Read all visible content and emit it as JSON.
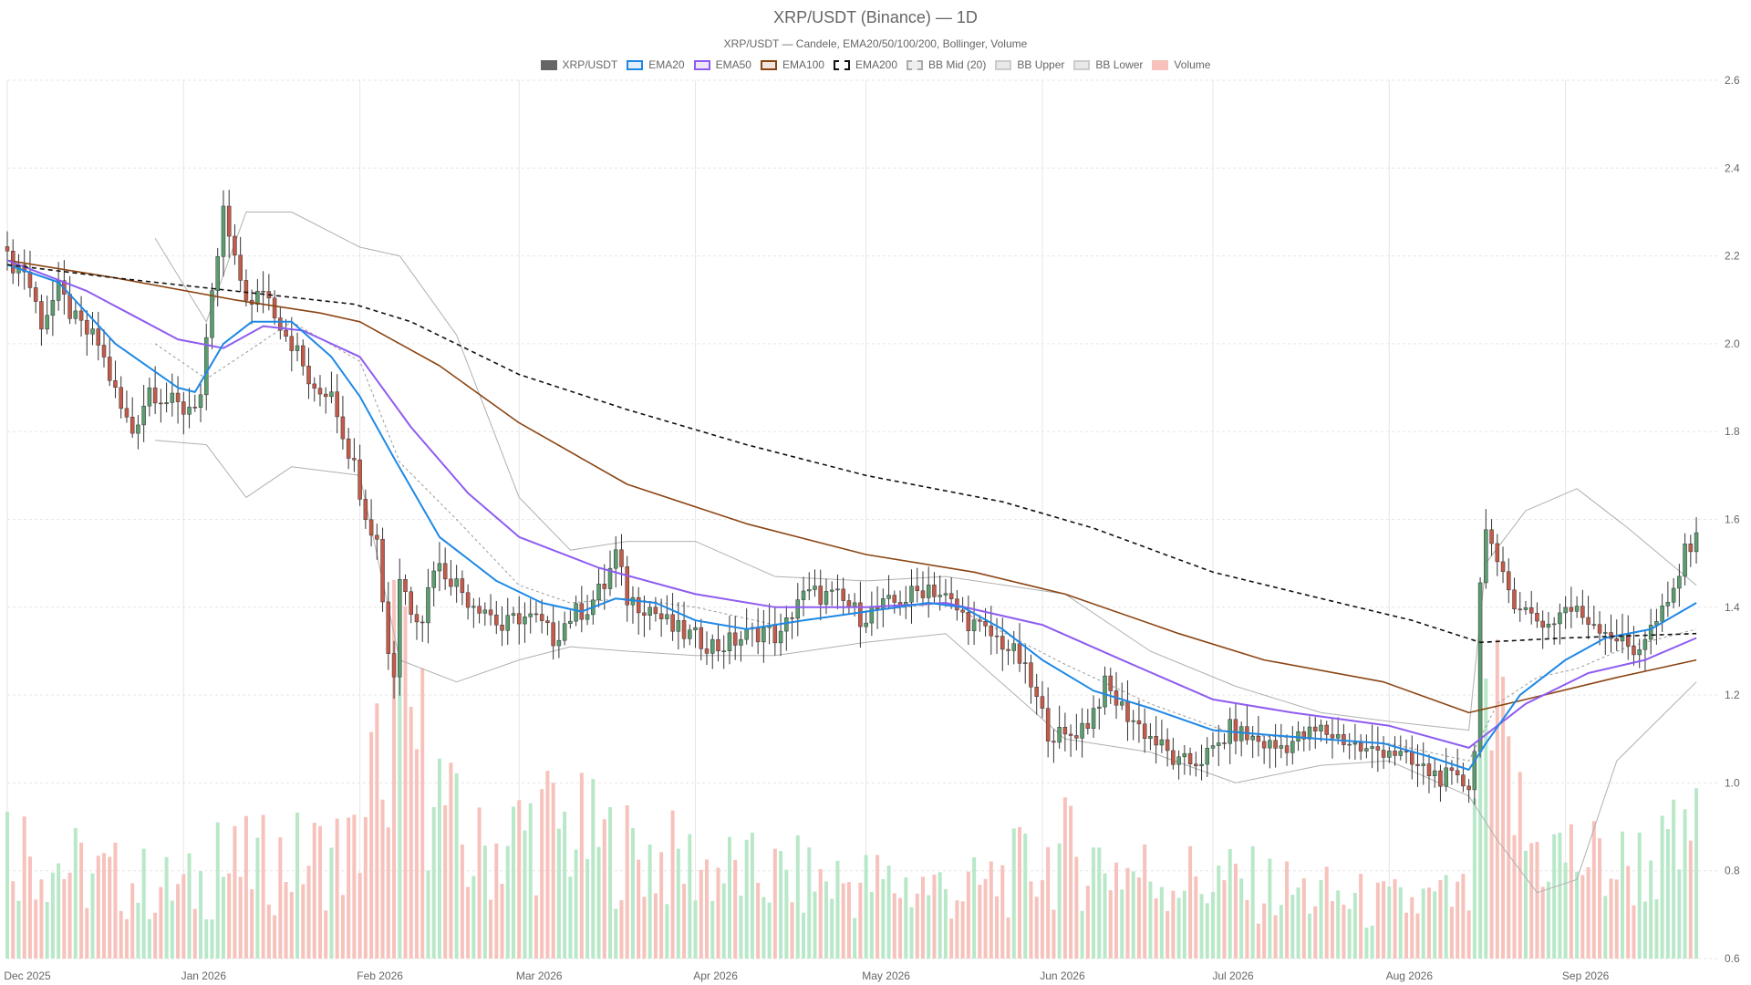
{
  "chart_data": {
    "type": "candlestick",
    "title": "XRP/USDT (Binance) — 1D",
    "subtitle": "XRP/USDT — Candele, EMA20/50/100/200, Bollinger, Volume",
    "legend_position": "top",
    "grid": true,
    "ylim": [
      0.6,
      2.6
    ],
    "y_ticks": [
      "0.6",
      "0.8",
      "1.0",
      "1.2",
      "1.4",
      "1.6",
      "1.8",
      "2.0",
      "2.2",
      "2.4",
      "2.6"
    ],
    "x_ticks": [
      {
        "date": "2025-12-01",
        "label": "Dec 2025"
      },
      {
        "date": "2026-01-01",
        "label": "Jan 2026"
      },
      {
        "date": "2026-02-01",
        "label": "Feb 2026"
      },
      {
        "date": "2026-03-01",
        "label": "Mar 2026"
      },
      {
        "date": "2026-04-01",
        "label": "Apr 2026"
      },
      {
        "date": "2026-05-01",
        "label": "May 2026"
      },
      {
        "date": "2026-06-01",
        "label": "Jun 2026"
      },
      {
        "date": "2026-07-01",
        "label": "Jul 2026"
      },
      {
        "date": "2026-08-01",
        "label": "Aug 2026"
      },
      {
        "date": "2026-09-01",
        "label": "Sep 2026"
      }
    ],
    "x_range": [
      "2025-12-01",
      "2026-09-28"
    ],
    "colors": {
      "up": "#5a9e6f",
      "down": "#c45b4a",
      "volume_up": "#b9e8c9",
      "volume_down": "#f6c2bb",
      "ema20": "#1e88e5",
      "ema50": "#8e5cf0",
      "ema100": "#8b4513",
      "ema200": "#111111",
      "bb": "#b0b0b0",
      "bb_mid": "#9a9a9a"
    },
    "legend": [
      {
        "label": "XRP/USDT",
        "fill": "#666666",
        "border": "#666666",
        "dash": false
      },
      {
        "label": "EMA20",
        "fill": "#e3eef8",
        "border": "#1e88e5",
        "dash": false
      },
      {
        "label": "EMA50",
        "fill": "#eee6fb",
        "border": "#8e5cf0",
        "dash": false
      },
      {
        "label": "EMA100",
        "fill": "#f0e6df",
        "border": "#8b4513",
        "dash": false
      },
      {
        "label": "EMA200",
        "fill": "#ffffff",
        "border": "#111111",
        "dash": true
      },
      {
        "label": "BB Mid (20)",
        "fill": "#eeeeee",
        "border": "#aaaaaa",
        "dash": true
      },
      {
        "label": "BB Upper",
        "fill": "#e8e8e8",
        "border": "#cccccc",
        "dash": false
      },
      {
        "label": "BB Lower",
        "fill": "#e8e8e8",
        "border": "#cccccc",
        "dash": false
      },
      {
        "label": "Volume",
        "fill": "#f6c2bb",
        "border": "#f6c2bb",
        "dash": false
      }
    ],
    "close_path": [
      [
        "2025-12-01",
        2.19
      ],
      [
        "2025-12-04",
        2.17
      ],
      [
        "2025-12-07",
        2.05
      ],
      [
        "2025-12-10",
        2.12
      ],
      [
        "2025-12-13",
        2.05
      ],
      [
        "2025-12-17",
        2.0
      ],
      [
        "2025-12-21",
        1.85
      ],
      [
        "2025-12-23",
        1.8
      ],
      [
        "2025-12-26",
        1.9
      ],
      [
        "2025-12-29",
        1.87
      ],
      [
        "2026-01-01",
        1.85
      ],
      [
        "2026-01-04",
        1.88
      ],
      [
        "2026-01-06",
        2.1
      ],
      [
        "2026-01-08",
        2.3
      ],
      [
        "2026-01-10",
        2.18
      ],
      [
        "2026-01-13",
        2.08
      ],
      [
        "2026-01-15",
        2.13
      ],
      [
        "2026-01-18",
        2.05
      ],
      [
        "2026-01-21",
        1.98
      ],
      [
        "2026-01-24",
        1.88
      ],
      [
        "2026-01-27",
        1.9
      ],
      [
        "2026-01-29",
        1.8
      ],
      [
        "2026-01-31",
        1.72
      ],
      [
        "2026-02-02",
        1.62
      ],
      [
        "2026-02-04",
        1.55
      ],
      [
        "2026-02-06",
        1.3
      ],
      [
        "2026-02-07",
        1.25
      ],
      [
        "2026-02-08",
        1.47
      ],
      [
        "2026-02-10",
        1.4
      ],
      [
        "2026-02-12",
        1.38
      ],
      [
        "2026-02-14",
        1.5
      ],
      [
        "2026-02-17",
        1.47
      ],
      [
        "2026-02-20",
        1.42
      ],
      [
        "2026-02-23",
        1.4
      ],
      [
        "2026-02-26",
        1.35
      ],
      [
        "2026-03-01",
        1.38
      ],
      [
        "2026-03-04",
        1.37
      ],
      [
        "2026-03-07",
        1.33
      ],
      [
        "2026-03-10",
        1.38
      ],
      [
        "2026-03-13",
        1.4
      ],
      [
        "2026-03-16",
        1.45
      ],
      [
        "2026-03-18",
        1.52
      ],
      [
        "2026-03-20",
        1.42
      ],
      [
        "2026-03-24",
        1.4
      ],
      [
        "2026-03-28",
        1.35
      ],
      [
        "2026-04-01",
        1.33
      ],
      [
        "2026-04-05",
        1.31
      ],
      [
        "2026-04-09",
        1.33
      ],
      [
        "2026-04-13",
        1.35
      ],
      [
        "2026-04-16",
        1.33
      ],
      [
        "2026-04-19",
        1.42
      ],
      [
        "2026-04-22",
        1.43
      ],
      [
        "2026-04-26",
        1.42
      ],
      [
        "2026-04-30",
        1.38
      ],
      [
        "2026-05-04",
        1.4
      ],
      [
        "2026-05-08",
        1.42
      ],
      [
        "2026-05-12",
        1.45
      ],
      [
        "2026-05-15",
        1.42
      ],
      [
        "2026-05-18",
        1.38
      ],
      [
        "2026-05-21",
        1.35
      ],
      [
        "2026-05-25",
        1.32
      ],
      [
        "2026-05-28",
        1.28
      ],
      [
        "2026-05-30",
        1.22
      ],
      [
        "2026-06-02",
        1.12
      ],
      [
        "2026-06-05",
        1.1
      ],
      [
        "2026-06-09",
        1.14
      ],
      [
        "2026-06-12",
        1.22
      ],
      [
        "2026-06-15",
        1.17
      ],
      [
        "2026-06-18",
        1.13
      ],
      [
        "2026-06-22",
        1.08
      ],
      [
        "2026-06-25",
        1.04
      ],
      [
        "2026-06-28",
        1.05
      ],
      [
        "2026-07-01",
        1.07
      ],
      [
        "2026-07-04",
        1.12
      ],
      [
        "2026-07-08",
        1.1
      ],
      [
        "2026-07-12",
        1.08
      ],
      [
        "2026-07-16",
        1.1
      ],
      [
        "2026-07-20",
        1.12
      ],
      [
        "2026-07-24",
        1.1
      ],
      [
        "2026-07-28",
        1.07
      ],
      [
        "2026-08-01",
        1.08
      ],
      [
        "2026-08-05",
        1.04
      ],
      [
        "2026-08-09",
        1.02
      ],
      [
        "2026-08-13",
        1.0
      ],
      [
        "2026-08-15",
        1.0
      ],
      [
        "2026-08-16",
        1.08
      ],
      [
        "2026-08-17",
        1.45
      ],
      [
        "2026-08-18",
        1.6
      ],
      [
        "2026-08-20",
        1.48
      ],
      [
        "2026-08-23",
        1.42
      ],
      [
        "2026-08-26",
        1.38
      ],
      [
        "2026-08-29",
        1.36
      ],
      [
        "2026-09-01",
        1.4
      ],
      [
        "2026-09-04",
        1.38
      ],
      [
        "2026-09-07",
        1.36
      ],
      [
        "2026-09-10",
        1.33
      ],
      [
        "2026-09-13",
        1.3
      ],
      [
        "2026-09-16",
        1.35
      ],
      [
        "2026-09-19",
        1.4
      ],
      [
        "2026-09-22",
        1.52
      ],
      [
        "2026-09-24",
        1.58
      ]
    ],
    "ema20": [
      [
        "2025-12-01",
        2.18
      ],
      [
        "2025-12-10",
        2.14
      ],
      [
        "2025-12-20",
        2.0
      ],
      [
        "2025-12-31",
        1.9
      ],
      [
        "2026-01-03",
        1.89
      ],
      [
        "2026-01-08",
        2.0
      ],
      [
        "2026-01-13",
        2.05
      ],
      [
        "2026-01-20",
        2.05
      ],
      [
        "2026-01-27",
        1.97
      ],
      [
        "2026-02-01",
        1.88
      ],
      [
        "2026-02-07",
        1.74
      ],
      [
        "2026-02-15",
        1.56
      ],
      [
        "2026-02-25",
        1.46
      ],
      [
        "2026-03-05",
        1.41
      ],
      [
        "2026-03-12",
        1.39
      ],
      [
        "2026-03-18",
        1.42
      ],
      [
        "2026-03-25",
        1.41
      ],
      [
        "2026-04-01",
        1.37
      ],
      [
        "2026-04-10",
        1.35
      ],
      [
        "2026-04-20",
        1.37
      ],
      [
        "2026-05-01",
        1.39
      ],
      [
        "2026-05-12",
        1.41
      ],
      [
        "2026-05-18",
        1.4
      ],
      [
        "2026-05-25",
        1.35
      ],
      [
        "2026-06-01",
        1.28
      ],
      [
        "2026-06-10",
        1.21
      ],
      [
        "2026-06-20",
        1.17
      ],
      [
        "2026-07-01",
        1.12
      ],
      [
        "2026-07-10",
        1.11
      ],
      [
        "2026-07-20",
        1.1
      ],
      [
        "2026-07-31",
        1.09
      ],
      [
        "2026-08-08",
        1.06
      ],
      [
        "2026-08-15",
        1.03
      ],
      [
        "2026-08-18",
        1.09
      ],
      [
        "2026-08-24",
        1.2
      ],
      [
        "2026-09-01",
        1.28
      ],
      [
        "2026-09-08",
        1.33
      ],
      [
        "2026-09-16",
        1.35
      ],
      [
        "2026-09-24",
        1.41
      ]
    ],
    "ema50": [
      [
        "2025-12-01",
        2.19
      ],
      [
        "2025-12-15",
        2.12
      ],
      [
        "2025-12-31",
        2.01
      ],
      [
        "2026-01-08",
        1.99
      ],
      [
        "2026-01-15",
        2.04
      ],
      [
        "2026-01-22",
        2.03
      ],
      [
        "2026-02-01",
        1.97
      ],
      [
        "2026-02-10",
        1.81
      ],
      [
        "2026-02-20",
        1.66
      ],
      [
        "2026-03-01",
        1.56
      ],
      [
        "2026-03-15",
        1.49
      ],
      [
        "2026-04-01",
        1.43
      ],
      [
        "2026-04-15",
        1.4
      ],
      [
        "2026-05-01",
        1.4
      ],
      [
        "2026-05-15",
        1.41
      ],
      [
        "2026-06-01",
        1.36
      ],
      [
        "2026-06-15",
        1.28
      ],
      [
        "2026-07-01",
        1.19
      ],
      [
        "2026-07-15",
        1.16
      ],
      [
        "2026-08-01",
        1.13
      ],
      [
        "2026-08-15",
        1.08
      ],
      [
        "2026-08-25",
        1.18
      ],
      [
        "2026-09-05",
        1.25
      ],
      [
        "2026-09-15",
        1.28
      ],
      [
        "2026-09-24",
        1.33
      ]
    ],
    "ema100": [
      [
        "2025-12-01",
        2.19
      ],
      [
        "2025-12-20",
        2.15
      ],
      [
        "2026-01-10",
        2.1
      ],
      [
        "2026-01-25",
        2.07
      ],
      [
        "2026-02-01",
        2.05
      ],
      [
        "2026-02-15",
        1.95
      ],
      [
        "2026-03-01",
        1.82
      ],
      [
        "2026-03-20",
        1.68
      ],
      [
        "2026-04-10",
        1.59
      ],
      [
        "2026-05-01",
        1.52
      ],
      [
        "2026-05-20",
        1.48
      ],
      [
        "2026-06-05",
        1.43
      ],
      [
        "2026-06-25",
        1.34
      ],
      [
        "2026-07-10",
        1.28
      ],
      [
        "2026-07-31",
        1.23
      ],
      [
        "2026-08-15",
        1.16
      ],
      [
        "2026-08-25",
        1.19
      ],
      [
        "2026-09-10",
        1.24
      ],
      [
        "2026-09-24",
        1.28
      ]
    ],
    "ema200": [
      [
        "2025-12-01",
        2.18
      ],
      [
        "2025-12-20",
        2.15
      ],
      [
        "2026-01-10",
        2.12
      ],
      [
        "2026-01-31",
        2.09
      ],
      [
        "2026-02-10",
        2.05
      ],
      [
        "2026-03-01",
        1.93
      ],
      [
        "2026-03-20",
        1.85
      ],
      [
        "2026-04-10",
        1.77
      ],
      [
        "2026-05-01",
        1.7
      ],
      [
        "2026-05-25",
        1.64
      ],
      [
        "2026-06-10",
        1.58
      ],
      [
        "2026-07-01",
        1.48
      ],
      [
        "2026-07-20",
        1.42
      ],
      [
        "2026-08-05",
        1.37
      ],
      [
        "2026-08-17",
        1.32
      ],
      [
        "2026-09-01",
        1.33
      ],
      [
        "2026-09-24",
        1.34
      ]
    ],
    "bb_upper": [
      [
        "2025-12-27",
        2.24
      ],
      [
        "2026-01-05",
        2.05
      ],
      [
        "2026-01-12",
        2.3
      ],
      [
        "2026-01-20",
        2.3
      ],
      [
        "2026-02-01",
        2.22
      ],
      [
        "2026-02-08",
        2.2
      ],
      [
        "2026-02-18",
        2.02
      ],
      [
        "2026-03-01",
        1.65
      ],
      [
        "2026-03-10",
        1.53
      ],
      [
        "2026-03-20",
        1.55
      ],
      [
        "2026-04-01",
        1.55
      ],
      [
        "2026-04-15",
        1.47
      ],
      [
        "2026-05-01",
        1.46
      ],
      [
        "2026-05-15",
        1.47
      ],
      [
        "2026-06-05",
        1.43
      ],
      [
        "2026-06-20",
        1.3
      ],
      [
        "2026-07-05",
        1.22
      ],
      [
        "2026-07-20",
        1.16
      ],
      [
        "2026-08-01",
        1.14
      ],
      [
        "2026-08-15",
        1.12
      ],
      [
        "2026-08-18",
        1.5
      ],
      [
        "2026-08-25",
        1.62
      ],
      [
        "2026-09-03",
        1.67
      ],
      [
        "2026-09-12",
        1.58
      ],
      [
        "2026-09-24",
        1.45
      ]
    ],
    "bb_lower": [
      [
        "2025-12-27",
        1.78
      ],
      [
        "2026-01-05",
        1.77
      ],
      [
        "2026-01-12",
        1.65
      ],
      [
        "2026-01-20",
        1.72
      ],
      [
        "2026-02-01",
        1.7
      ],
      [
        "2026-02-08",
        1.28
      ],
      [
        "2026-02-18",
        1.23
      ],
      [
        "2026-03-01",
        1.28
      ],
      [
        "2026-03-10",
        1.31
      ],
      [
        "2026-03-20",
        1.3
      ],
      [
        "2026-04-01",
        1.29
      ],
      [
        "2026-04-15",
        1.29
      ],
      [
        "2026-05-01",
        1.32
      ],
      [
        "2026-05-15",
        1.34
      ],
      [
        "2026-06-05",
        1.1
      ],
      [
        "2026-06-20",
        1.07
      ],
      [
        "2026-07-05",
        1.0
      ],
      [
        "2026-07-20",
        1.04
      ],
      [
        "2026-08-01",
        1.05
      ],
      [
        "2026-08-15",
        0.97
      ],
      [
        "2026-08-20",
        0.87
      ],
      [
        "2026-08-27",
        0.75
      ],
      [
        "2026-09-03",
        0.78
      ],
      [
        "2026-09-10",
        1.05
      ],
      [
        "2026-09-24",
        1.23
      ]
    ],
    "bb_mid": [
      [
        "2025-12-27",
        2.0
      ],
      [
        "2026-01-05",
        1.92
      ],
      [
        "2026-01-12",
        1.98
      ],
      [
        "2026-01-20",
        2.05
      ],
      [
        "2026-02-01",
        1.96
      ],
      [
        "2026-02-08",
        1.73
      ],
      [
        "2026-02-18",
        1.6
      ],
      [
        "2026-03-01",
        1.45
      ],
      [
        "2026-03-10",
        1.41
      ],
      [
        "2026-03-20",
        1.42
      ],
      [
        "2026-04-01",
        1.4
      ],
      [
        "2026-04-15",
        1.36
      ],
      [
        "2026-05-01",
        1.39
      ],
      [
        "2026-05-15",
        1.41
      ],
      [
        "2026-06-05",
        1.27
      ],
      [
        "2026-06-20",
        1.18
      ],
      [
        "2026-07-05",
        1.11
      ],
      [
        "2026-07-20",
        1.1
      ],
      [
        "2026-08-01",
        1.09
      ],
      [
        "2026-08-15",
        1.05
      ],
      [
        "2026-08-20",
        1.18
      ],
      [
        "2026-08-27",
        1.24
      ],
      [
        "2026-09-03",
        1.26
      ],
      [
        "2026-09-12",
        1.31
      ],
      [
        "2026-09-24",
        1.35
      ]
    ],
    "volume_ratio_path": [
      [
        "2025-12-01",
        0.32
      ],
      [
        "2025-12-15",
        0.22
      ],
      [
        "2026-01-01",
        0.18
      ],
      [
        "2026-01-10",
        0.24
      ],
      [
        "2026-01-31",
        0.28
      ],
      [
        "2026-02-07",
        0.7
      ],
      [
        "2026-02-20",
        0.26
      ],
      [
        "2026-03-05",
        0.36
      ],
      [
        "2026-03-20",
        0.28
      ],
      [
        "2026-04-10",
        0.22
      ],
      [
        "2026-05-01",
        0.2
      ],
      [
        "2026-05-20",
        0.18
      ],
      [
        "2026-06-05",
        0.28
      ],
      [
        "2026-06-20",
        0.22
      ],
      [
        "2026-07-05",
        0.2
      ],
      [
        "2026-07-31",
        0.14
      ],
      [
        "2026-08-15",
        0.16
      ],
      [
        "2026-08-19",
        0.65
      ],
      [
        "2026-08-25",
        0.3
      ],
      [
        "2026-09-10",
        0.24
      ],
      [
        "2026-09-24",
        0.28
      ]
    ],
    "volume_spikes": [
      [
        "2026-02-07",
        1.0
      ],
      [
        "2026-02-08",
        0.92
      ],
      [
        "2026-02-05",
        0.42
      ],
      [
        "2026-01-07",
        0.36
      ],
      [
        "2026-02-14",
        0.4
      ],
      [
        "2026-08-18",
        0.74
      ],
      [
        "2026-08-19",
        0.55
      ],
      [
        "2026-08-17",
        0.56
      ],
      [
        "2026-09-20",
        0.42
      ],
      [
        "2026-09-24",
        0.45
      ],
      [
        "2026-03-17",
        0.4
      ]
    ]
  }
}
